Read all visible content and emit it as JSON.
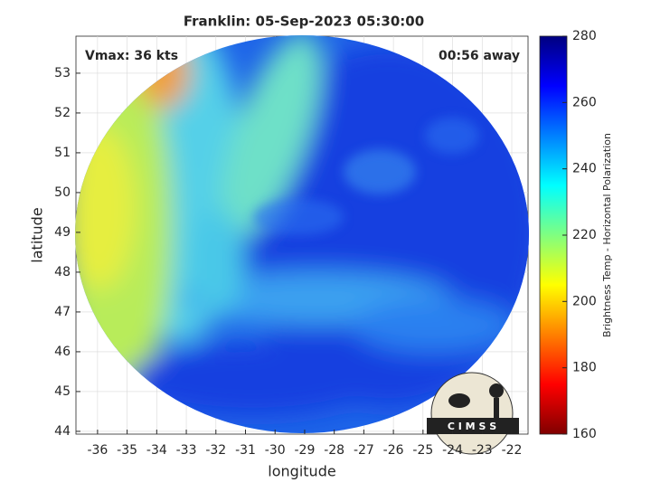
{
  "chart_data": {
    "type": "image",
    "title": "Franklin: 05-Sep-2023 05:30:00",
    "annotations": [
      "Vmax: 36 kts",
      "00:56 away"
    ],
    "x_label": "longitude",
    "y_label": "latitude",
    "xlim": [
      -36.73,
      -21.45
    ],
    "xticks": [
      -36,
      -35,
      -34,
      -33,
      -32,
      -31,
      -30,
      -29,
      -28,
      -27,
      -26,
      -25,
      -24,
      -23,
      -22
    ],
    "ylim": [
      43.93,
      53.93
    ],
    "yticks": [
      44,
      45,
      46,
      47,
      48,
      49,
      50,
      51,
      52,
      53
    ],
    "grid": true,
    "colorbar": {
      "label": "Brightness Temp - Horizontal Polarization",
      "lim": [
        160,
        280
      ],
      "ticks": [
        160,
        180,
        200,
        220,
        240,
        260,
        280
      ],
      "colormap": [
        "#800000",
        "#ff0000",
        "#ff8000",
        "#ffff00",
        "#80ff80",
        "#00ffff",
        "#0080ff",
        "#0000ff",
        "#000080"
      ]
    },
    "logo": "C I M S S"
  }
}
